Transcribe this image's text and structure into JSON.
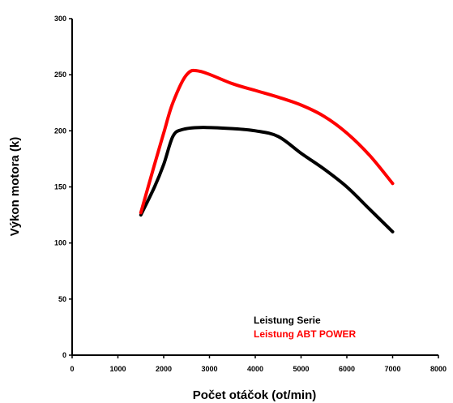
{
  "chart_data": {
    "type": "line",
    "title": "",
    "xlabel": "Počet otáčok (ot/min)",
    "ylabel": "Výkon motora (k)",
    "xlim": [
      0,
      8000
    ],
    "ylim": [
      0,
      300
    ],
    "xticks": [
      0,
      1000,
      2000,
      3000,
      4000,
      5000,
      6000,
      7000,
      8000
    ],
    "yticks": [
      0,
      50,
      100,
      150,
      200,
      250,
      300
    ],
    "grid": false,
    "legend_position": "bottom-right",
    "series": [
      {
        "name": "Leistung Serie",
        "color": "#000000",
        "points": [
          [
            1500,
            125
          ],
          [
            1800,
            150
          ],
          [
            2000,
            170
          ],
          [
            2200,
            195
          ],
          [
            2400,
            201
          ],
          [
            2800,
            203
          ],
          [
            3500,
            202
          ],
          [
            4000,
            200
          ],
          [
            4500,
            195
          ],
          [
            5000,
            180
          ],
          [
            5500,
            166
          ],
          [
            6000,
            150
          ],
          [
            6500,
            130
          ],
          [
            7000,
            110
          ]
        ]
      },
      {
        "name": "Leistung ABT POWER",
        "color": "#ff0000",
        "points": [
          [
            1500,
            127
          ],
          [
            1800,
            170
          ],
          [
            2000,
            198
          ],
          [
            2200,
            225
          ],
          [
            2500,
            250
          ],
          [
            2800,
            253
          ],
          [
            3500,
            242
          ],
          [
            4000,
            236
          ],
          [
            4500,
            230
          ],
          [
            5000,
            223
          ],
          [
            5500,
            213
          ],
          [
            6000,
            198
          ],
          [
            6500,
            178
          ],
          [
            7000,
            153
          ]
        ]
      }
    ]
  }
}
